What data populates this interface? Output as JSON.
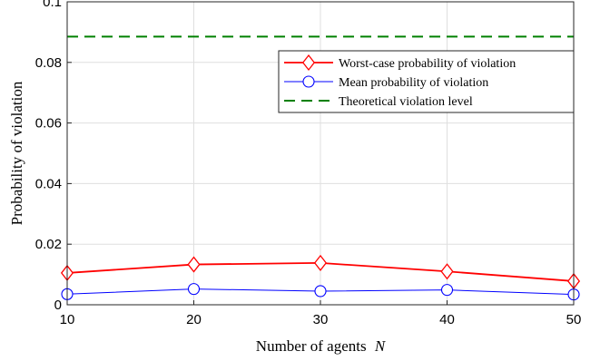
{
  "chart_data": {
    "type": "line",
    "xlabel": "Number of agents",
    "xlabel_var": "N",
    "ylabel": "Probability of violation",
    "xlim": [
      10,
      50
    ],
    "ylim": [
      0,
      0.1
    ],
    "x_ticks": [
      10,
      20,
      30,
      40,
      50
    ],
    "y_ticks": [
      0,
      0.02,
      0.04,
      0.06,
      0.08,
      0.1
    ],
    "y_tick_labels": [
      "0",
      "0.02",
      "0.04",
      "0.06",
      "0.08",
      "0.1"
    ],
    "grid": true,
    "legend_position": "upper-right",
    "x": [
      10,
      20,
      30,
      40,
      50
    ],
    "series": [
      {
        "name": "Worst-case probability of violation",
        "values": [
          0.0105,
          0.0133,
          0.0138,
          0.011,
          0.0078
        ],
        "color": "#ff0000",
        "marker": "diamond",
        "style": "solid"
      },
      {
        "name": "Mean probability of violation",
        "values": [
          0.0035,
          0.0052,
          0.0045,
          0.0049,
          0.0034
        ],
        "color": "#0000ff",
        "marker": "circle",
        "style": "solid"
      },
      {
        "name": "Theoretical violation level",
        "values": [
          0.0885,
          0.0885,
          0.0885,
          0.0885,
          0.0885
        ],
        "color": "#008000",
        "marker": "none",
        "style": "dashed"
      }
    ]
  }
}
